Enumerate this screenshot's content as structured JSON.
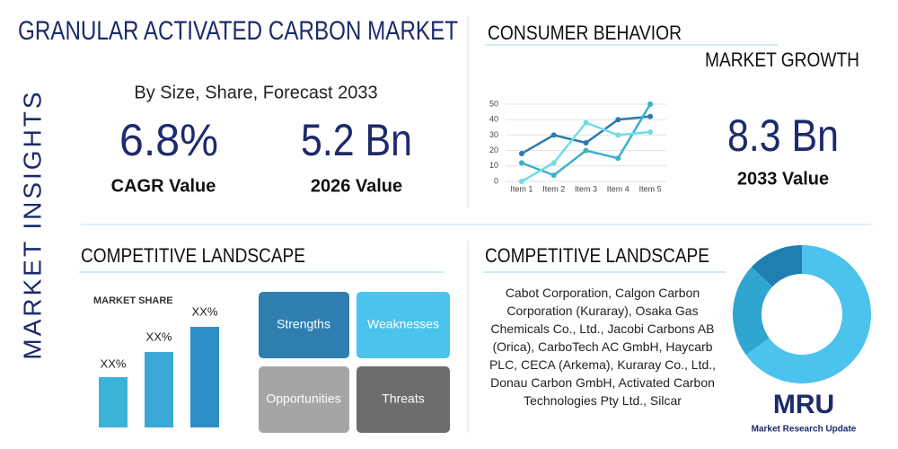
{
  "header": {
    "title": "GRANULAR ACTIVATED CARBON MARKET",
    "side_label": "MARKET INSIGHTS"
  },
  "summary": {
    "subtitle": "By Size, Share, Forecast 2033",
    "cagr": "6.8%",
    "cagr_label": "CAGR Value",
    "value_2026": "5.2 Bn",
    "value_2026_label": "2026 Value"
  },
  "consumer": {
    "title": "CONSUMER BEHAVIOR",
    "subtitle": "MARKET GROWTH",
    "value": "8.3 Bn",
    "value_label": "2033 Value"
  },
  "competitive_left": {
    "title": "COMPETITIVE LANDSCAPE",
    "market_share": {
      "title": "MARKET SHARE",
      "labels": [
        "XX%",
        "XX%",
        "XX%"
      ]
    },
    "swot": [
      "Strengths",
      "Weaknesses",
      "Opportunities",
      "Threats"
    ]
  },
  "competitive_right": {
    "title": "COMPETITIVE LANDSCAPE",
    "companies": "Cabot Corporation, Calgon Carbon Corporation (Kuraray), Osaka Gas Chemicals Co., Ltd., Jacobi Carbons AB (Orica), CarboTech AC GmbH, Haycarb PLC, CECA (Arkema), Kuraray Co., Ltd., Donau Carbon GmbH, Activated Carbon Technologies Pty Ltd., Silcar"
  },
  "logo": {
    "text": "MRU",
    "caption": "Market Research Update"
  },
  "chart_data": [
    {
      "type": "line",
      "categories": [
        "Item 1",
        "Item 2",
        "Item 3",
        "Item 4",
        "Item 5"
      ],
      "series": [
        {
          "color": "#2a7ab0",
          "values": [
            18,
            30,
            25,
            40,
            42
          ]
        },
        {
          "color": "#3bb0c9",
          "values": [
            12,
            4,
            20,
            15,
            50
          ]
        },
        {
          "color": "#6fdde6",
          "values": [
            0,
            12,
            38,
            30,
            32
          ]
        }
      ],
      "ylim": [
        0,
        50
      ],
      "yticks": [
        0,
        10,
        20,
        30,
        40,
        50
      ],
      "grid": true
    },
    {
      "type": "pie",
      "values": [
        65,
        22,
        13
      ],
      "colors": [
        "#4cc3ec",
        "#2ea6cf",
        "#1e7fb0"
      ]
    }
  ]
}
